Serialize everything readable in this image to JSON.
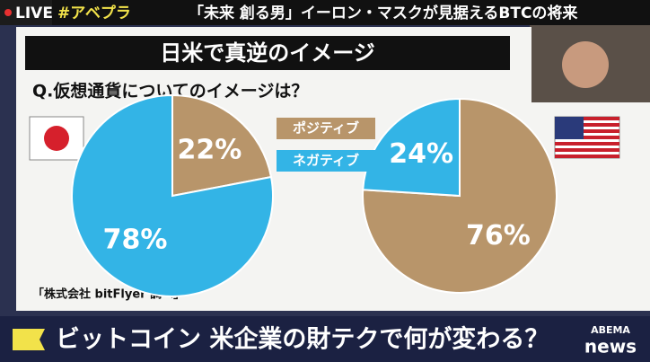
{
  "top_bar": {
    "live": "LIVE",
    "hashtag": "#アベプラ",
    "headline": "「未来 創る男」イーロン・マスクが見据えるBTCの将来"
  },
  "panel": {
    "title": "日米で真逆のイメージ",
    "question": "Q.仮想通貨についてのイメージは？",
    "source": "「株式会社 bitFlyer 調べ」"
  },
  "chart_data": [
    {
      "type": "pie",
      "categories": [
        "ポジティブ",
        "ネガティブ"
      ],
      "values": [
        22,
        78
      ],
      "value_labels": [
        "22%",
        "78%"
      ],
      "colors": [
        "#b8956a",
        "#33b4e6"
      ]
    },
    {
      "type": "pie",
      "values": [
        76,
        24
      ],
      "value_labels": [
        "76%",
        "24%"
      ],
      "colors": [
        "#b8956a",
        "#33b4e6"
      ]
    }
  ],
  "bottom_bar": {
    "banner": "ビットコイン 米企業の財テクで何が変わる？",
    "logo": "ABEMA",
    "logo_sub": "news"
  }
}
